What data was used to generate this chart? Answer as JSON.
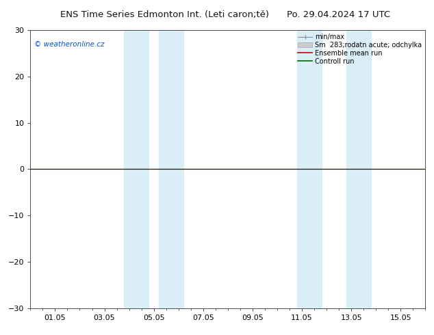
{
  "title_left": "ENS Time Series Edmonton Int. (Leti caron;tě)",
  "title_right": "Po. 29.04.2024 17 UTC",
  "ylim": [
    -30,
    30
  ],
  "yticks": [
    -30,
    -20,
    -10,
    0,
    10,
    20,
    30
  ],
  "xlim": [
    0,
    16
  ],
  "xtick_labels": [
    "01.05",
    "03.05",
    "05.05",
    "07.05",
    "09.05",
    "11.05",
    "13.05",
    "15.05"
  ],
  "xtick_positions": [
    1,
    3,
    5,
    7,
    9,
    11,
    13,
    15
  ],
  "blue_bands": [
    [
      3.8,
      4.8
    ],
    [
      5.2,
      6.2
    ],
    [
      10.8,
      11.8
    ],
    [
      12.8,
      13.8
    ]
  ],
  "blue_band_color": "#daeef8",
  "zero_line_color": "#1a1a00",
  "watermark": "© weatheronline.cz",
  "watermark_color": "#0055cc",
  "legend_minmax_color": "#888888",
  "legend_sm_color": "#cccccc",
  "legend_ens_color": "#cc0000",
  "legend_ctrl_color": "#006600",
  "background_color": "#ffffff",
  "title_fontsize": 9.5,
  "tick_fontsize": 8,
  "watermark_fontsize": 7.5,
  "legend_fontsize": 7
}
